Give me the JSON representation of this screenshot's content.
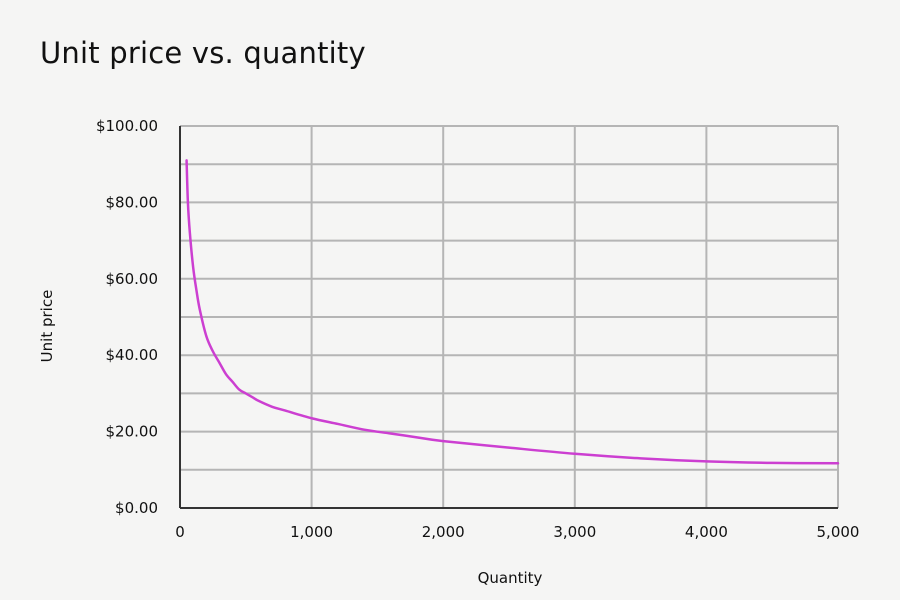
{
  "chart_data": {
    "type": "line",
    "title": "Unit price vs. quantity",
    "xlabel": "Quantity",
    "ylabel": "Unit price",
    "xlim": [
      0,
      5000
    ],
    "ylim": [
      0,
      100
    ],
    "x_ticks": [
      0,
      1000,
      2000,
      3000,
      4000,
      5000
    ],
    "x_tick_labels": [
      "0",
      "1,000",
      "2,000",
      "3,000",
      "4,000",
      "5,000"
    ],
    "y_ticks": [
      0,
      20,
      40,
      60,
      80,
      100
    ],
    "y_tick_labels": [
      "$0.00",
      "$20.00",
      "$40.00",
      "$60.00",
      "$80.00",
      "$100.00"
    ],
    "grid": true,
    "legend": "none",
    "series": [
      {
        "color": "#cc3fd1",
        "x": [
          50,
          60,
          75,
          100,
          125,
          150,
          200,
          250,
          300,
          350,
          400,
          450,
          500,
          550,
          600,
          700,
          800,
          1000,
          1200,
          1400,
          1600,
          1800,
          2000,
          2500,
          3000,
          3500,
          4000,
          4500,
          5000
        ],
        "y": [
          91,
          80,
          72,
          63,
          57,
          52,
          45,
          41,
          38,
          35,
          33,
          31,
          30,
          29,
          28,
          26.5,
          25.5,
          23.5,
          22,
          20.5,
          19.5,
          18.5,
          17.5,
          15.8,
          14.2,
          13,
          12.2,
          11.8,
          11.7
        ]
      }
    ]
  }
}
